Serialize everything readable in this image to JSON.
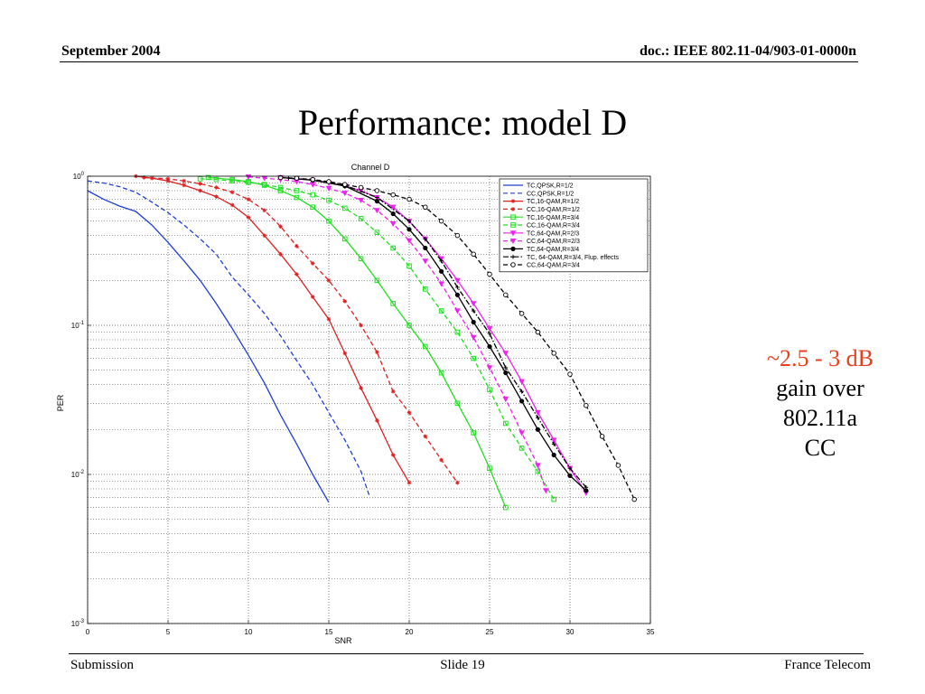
{
  "header": {
    "left": "September 2004",
    "right": "doc.: IEEE 802.11-04/903-01-0000n"
  },
  "title": "Performance: model D",
  "annotation": {
    "line1": "~2.5 - 3 dB",
    "line2": "gain over",
    "line3": "802.11a",
    "line4": "CC"
  },
  "footer": {
    "left": "Submission",
    "center": "Slide 19",
    "right": "France Telecom"
  },
  "colors": {
    "blue": "#1f3fd1",
    "red": "#e02020",
    "green": "#22e022",
    "magenta": "#f020f0",
    "black": "#000000",
    "annotation_red": "#e8401c"
  },
  "chart_data": {
    "type": "line",
    "title": "Channel D",
    "xlabel": "SNR",
    "ylabel": "PER",
    "xlim": [
      0,
      35
    ],
    "ylim": [
      0.001,
      1
    ],
    "yscale": "log",
    "grid": true,
    "legend_position": "top-right",
    "x_ticks": [
      0,
      5,
      10,
      15,
      20,
      25,
      30,
      35
    ],
    "y_ticks": [
      {
        "value": 1,
        "base": "10",
        "exp": "0"
      },
      {
        "value": 0.1,
        "base": "10",
        "exp": "-1"
      },
      {
        "value": 0.01,
        "base": "10",
        "exp": "-2"
      },
      {
        "value": 0.001,
        "base": "10",
        "exp": "-3"
      }
    ],
    "series": [
      {
        "name": "TC,QPSK,R=1/2",
        "color": "#1f3fd1",
        "dash": "solid",
        "marker": "none",
        "x": [
          0,
          1,
          2,
          3,
          4,
          5,
          6,
          7,
          8,
          9,
          10,
          11,
          12,
          13,
          14,
          15
        ],
        "y": [
          0.8,
          0.7,
          0.63,
          0.58,
          0.47,
          0.36,
          0.27,
          0.2,
          0.14,
          0.095,
          0.063,
          0.041,
          0.025,
          0.016,
          0.01,
          0.0065
        ]
      },
      {
        "name": "CC,QPSK,R=1/2",
        "color": "#1f3fd1",
        "dash": "dashed",
        "marker": "none",
        "x": [
          0,
          1,
          2,
          3,
          4,
          5,
          6,
          7,
          8,
          9,
          10,
          11,
          12,
          13,
          14,
          15,
          16,
          17,
          17.5
        ],
        "y": [
          0.93,
          0.9,
          0.85,
          0.78,
          0.67,
          0.57,
          0.47,
          0.38,
          0.3,
          0.21,
          0.16,
          0.12,
          0.085,
          0.058,
          0.04,
          0.026,
          0.017,
          0.0105,
          0.0073
        ]
      },
      {
        "name": "TC,16-QAM,R=1/2",
        "color": "#e02020",
        "dash": "solid",
        "marker": "star",
        "x": [
          3,
          4,
          5,
          6,
          7,
          8,
          9,
          10,
          11,
          12,
          13,
          14,
          15,
          16,
          17,
          18,
          19,
          20
        ],
        "y": [
          1,
          0.97,
          0.93,
          0.87,
          0.8,
          0.73,
          0.64,
          0.53,
          0.4,
          0.3,
          0.22,
          0.155,
          0.11,
          0.065,
          0.038,
          0.023,
          0.0135,
          0.0088
        ]
      },
      {
        "name": "CC,16-QAM,R=1/2",
        "color": "#e02020",
        "dash": "dashed",
        "marker": "star",
        "x": [
          3.5,
          5,
          6,
          7,
          8,
          9,
          10,
          11,
          12,
          13,
          14,
          15,
          16,
          17,
          18,
          19,
          20,
          21,
          22,
          23
        ],
        "y": [
          0.98,
          0.96,
          0.93,
          0.89,
          0.84,
          0.78,
          0.7,
          0.59,
          0.46,
          0.34,
          0.26,
          0.2,
          0.145,
          0.1,
          0.066,
          0.036,
          0.026,
          0.018,
          0.0125,
          0.0088
        ]
      },
      {
        "name": "TC,16-QAM,R=3/4",
        "color": "#22e022",
        "dash": "solid",
        "marker": "square",
        "x": [
          7.5,
          9,
          10,
          11,
          12,
          13,
          14,
          15,
          16,
          17,
          18,
          19,
          20,
          21,
          22,
          23,
          24,
          25,
          26
        ],
        "y": [
          0.98,
          0.95,
          0.92,
          0.87,
          0.8,
          0.72,
          0.62,
          0.5,
          0.38,
          0.28,
          0.2,
          0.14,
          0.1,
          0.072,
          0.048,
          0.03,
          0.019,
          0.011,
          0.006
        ]
      },
      {
        "name": "CC,16-QAM,R=3/4",
        "color": "#22e022",
        "dash": "dashed",
        "marker": "square",
        "x": [
          7,
          8,
          9,
          10,
          11,
          12,
          13,
          14,
          15,
          16,
          17,
          18,
          19,
          20,
          21,
          22,
          23,
          24,
          25,
          26,
          27,
          28,
          29
        ],
        "y": [
          0.96,
          0.95,
          0.93,
          0.91,
          0.88,
          0.84,
          0.8,
          0.75,
          0.69,
          0.61,
          0.52,
          0.42,
          0.33,
          0.25,
          0.175,
          0.125,
          0.09,
          0.06,
          0.037,
          0.022,
          0.015,
          0.0105,
          0.0068
        ]
      },
      {
        "name": "TC,64-QAM,R=2/3",
        "color": "#f020f0",
        "dash": "solid",
        "marker": "triangle-down",
        "x": [
          12,
          13,
          14,
          15,
          16,
          17,
          18,
          19,
          20,
          21,
          22,
          23,
          24,
          25,
          26,
          27,
          28,
          29,
          30,
          31
        ],
        "y": [
          0.98,
          0.96,
          0.94,
          0.9,
          0.86,
          0.8,
          0.72,
          0.62,
          0.5,
          0.38,
          0.28,
          0.2,
          0.14,
          0.095,
          0.065,
          0.042,
          0.026,
          0.017,
          0.011,
          0.0075
        ]
      },
      {
        "name": "CC,64-QAM,R=2/3",
        "color": "#f020f0",
        "dash": "dashed",
        "marker": "triangle-down",
        "x": [
          10,
          11,
          12,
          13,
          14,
          15,
          16,
          17,
          18,
          19,
          20,
          21,
          22,
          23,
          24,
          25,
          26,
          27,
          28,
          28.5
        ],
        "y": [
          0.99,
          0.97,
          0.95,
          0.92,
          0.88,
          0.83,
          0.77,
          0.69,
          0.59,
          0.48,
          0.37,
          0.27,
          0.19,
          0.125,
          0.083,
          0.052,
          0.032,
          0.019,
          0.0115,
          0.0078
        ]
      },
      {
        "name": "TC,64-QAM,R=3/4",
        "color": "#000000",
        "dash": "solid",
        "marker": "circle-filled",
        "x": [
          12,
          14,
          16,
          18,
          19,
          20,
          21,
          22,
          23,
          24,
          25,
          26,
          27,
          28,
          29,
          30,
          31
        ],
        "y": [
          0.98,
          0.94,
          0.86,
          0.68,
          0.56,
          0.44,
          0.33,
          0.23,
          0.16,
          0.105,
          0.072,
          0.048,
          0.031,
          0.02,
          0.0135,
          0.0098,
          0.0078
        ]
      },
      {
        "name": "TC, 64-QAM,R=3/4, Flup. effects",
        "color": "#000000",
        "dash": "dashdot",
        "marker": "plus",
        "x": [
          12.5,
          14,
          16,
          18,
          20,
          21,
          22,
          23,
          24,
          25,
          26,
          27,
          28,
          29,
          30,
          31
        ],
        "y": [
          0.97,
          0.94,
          0.87,
          0.72,
          0.5,
          0.38,
          0.27,
          0.18,
          0.125,
          0.088,
          0.052,
          0.036,
          0.024,
          0.016,
          0.011,
          0.0082
        ]
      },
      {
        "name": "CC,64-QAM,R=3/4",
        "color": "#000000",
        "dash": "dashed",
        "marker": "circle-open",
        "x": [
          12,
          13,
          14,
          15,
          16,
          17,
          18,
          19,
          20,
          21,
          22,
          23,
          24,
          25,
          26,
          27,
          28,
          29,
          30,
          31,
          32,
          33,
          34
        ],
        "y": [
          0.98,
          0.97,
          0.95,
          0.92,
          0.88,
          0.84,
          0.8,
          0.75,
          0.7,
          0.62,
          0.5,
          0.4,
          0.3,
          0.22,
          0.16,
          0.12,
          0.09,
          0.065,
          0.047,
          0.029,
          0.018,
          0.0115,
          0.0068
        ]
      }
    ]
  }
}
